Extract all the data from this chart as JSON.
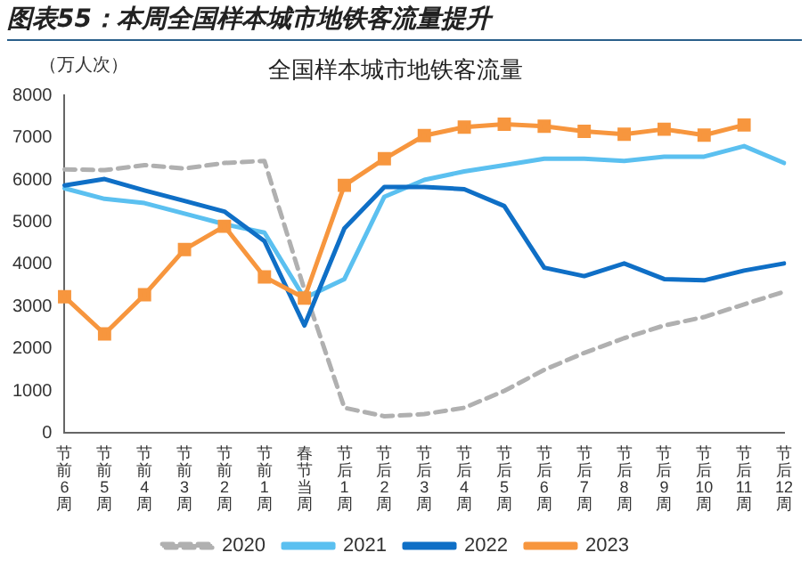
{
  "chart_data": {
    "type": "line",
    "title": "图表55：本周全国样本城市地铁客流量提升",
    "subtitle": "全国样本城市地铁客流量",
    "ylabel": "（万人次）",
    "categories": [
      "节前6周",
      "节前5周",
      "节前4周",
      "节前3周",
      "节前2周",
      "节前1周",
      "春节当周",
      "节后1周",
      "节后2周",
      "节后3周",
      "节后4周",
      "节后5周",
      "节后6周",
      "节后7周",
      "节后8周",
      "节后9周",
      "节后10周",
      "节后11周",
      "节后12周"
    ],
    "series": [
      {
        "name": "2020",
        "color": "#b0b0b0",
        "line_style": "dashed",
        "marker": "none",
        "values": [
          6250,
          6230,
          6350,
          6270,
          6400,
          6450,
          3400,
          600,
          400,
          450,
          600,
          1000,
          1500,
          1900,
          2250,
          2550,
          2750,
          3050,
          3350
        ]
      },
      {
        "name": "2021",
        "color": "#5bc0f0",
        "line_style": "solid",
        "marker": "none",
        "values": [
          5800,
          5550,
          5450,
          5200,
          4950,
          4750,
          3200,
          3650,
          5600,
          6000,
          6200,
          6350,
          6500,
          6500,
          6450,
          6550,
          6550,
          6800,
          6400
        ]
      },
      {
        "name": "2022",
        "color": "#0f6fc6",
        "line_style": "solid",
        "marker": "none",
        "values": [
          5870,
          6020,
          5750,
          5500,
          5250,
          4550,
          2550,
          4850,
          5830,
          5830,
          5780,
          5380,
          3920,
          3720,
          4020,
          3650,
          3620,
          3850,
          4020
        ]
      },
      {
        "name": "2023",
        "color": "#f7963e",
        "line_style": "solid",
        "marker": "square",
        "values": [
          3230,
          2350,
          3280,
          4350,
          4900,
          3700,
          3200,
          5870,
          6500,
          7050,
          7250,
          7320,
          7270,
          7150,
          7080,
          7200,
          7060,
          7300,
          null
        ]
      }
    ],
    "ylim": [
      0,
      8000
    ],
    "yticks": [
      0,
      1000,
      2000,
      3000,
      4000,
      5000,
      6000,
      7000,
      8000
    ],
    "grid": false,
    "legend": "bottom"
  }
}
